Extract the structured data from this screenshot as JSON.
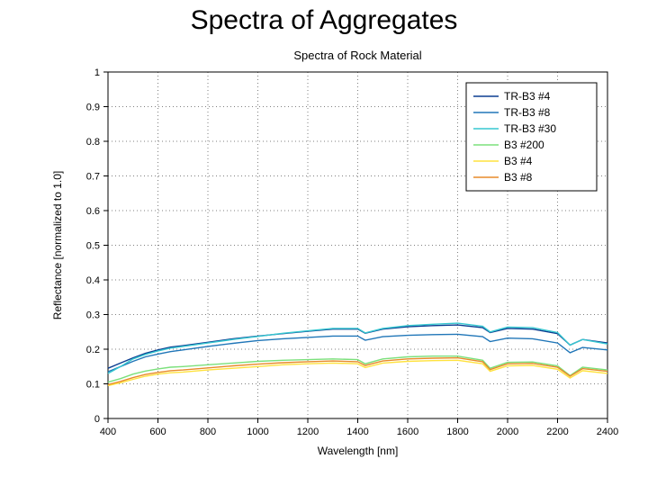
{
  "page_title": "Spectra of Aggregates",
  "chart": {
    "type": "line",
    "title": "Spectra of Rock Material",
    "title_fontsize": 13,
    "xlabel": "Wavelength [nm]",
    "ylabel": "Reflectance [normalized to 1.0]",
    "label_fontsize": 12,
    "tick_fontsize": 11,
    "background_color": "#ffffff",
    "axis_color": "#000000",
    "grid_color": "#000000",
    "grid_style": "dotted",
    "xlim": [
      400,
      2400
    ],
    "ylim": [
      0,
      1
    ],
    "xticks": [
      400,
      600,
      800,
      1000,
      1200,
      1400,
      1600,
      1800,
      2000,
      2200,
      2400
    ],
    "yticks": [
      0,
      0.1,
      0.2,
      0.3,
      0.4,
      0.5,
      0.6,
      0.7,
      0.8,
      0.9,
      1
    ],
    "line_width": 1.4,
    "legend": {
      "position": "upper-right",
      "border_color": "#000000",
      "background_color": "#ffffff",
      "fontsize": 12,
      "sample_line_length": 28
    },
    "series": [
      {
        "name": "TR-B3 #4",
        "color": "#0b3d91",
        "x": [
          400,
          450,
          500,
          550,
          600,
          650,
          700,
          800,
          900,
          1000,
          1100,
          1200,
          1300,
          1400,
          1430,
          1500,
          1600,
          1700,
          1800,
          1900,
          1930,
          2000,
          2100,
          2200,
          2250,
          2300,
          2400
        ],
        "y": [
          0.145,
          0.16,
          0.175,
          0.188,
          0.198,
          0.206,
          0.21,
          0.22,
          0.23,
          0.238,
          0.245,
          0.252,
          0.258,
          0.258,
          0.246,
          0.258,
          0.265,
          0.268,
          0.27,
          0.262,
          0.248,
          0.26,
          0.258,
          0.245,
          0.212,
          0.228,
          0.218
        ]
      },
      {
        "name": "TR-B3 #8",
        "color": "#2076b8",
        "x": [
          400,
          450,
          500,
          550,
          600,
          650,
          700,
          800,
          900,
          1000,
          1100,
          1200,
          1300,
          1400,
          1430,
          1500,
          1600,
          1700,
          1800,
          1900,
          1930,
          2000,
          2100,
          2200,
          2250,
          2300,
          2400
        ],
        "y": [
          0.135,
          0.15,
          0.165,
          0.178,
          0.186,
          0.193,
          0.198,
          0.208,
          0.217,
          0.225,
          0.23,
          0.234,
          0.238,
          0.238,
          0.226,
          0.236,
          0.24,
          0.242,
          0.243,
          0.236,
          0.222,
          0.232,
          0.23,
          0.218,
          0.19,
          0.205,
          0.198
        ]
      },
      {
        "name": "TR-B3 #30",
        "color": "#36c7d0",
        "x": [
          400,
          450,
          500,
          550,
          600,
          650,
          700,
          800,
          900,
          1000,
          1100,
          1200,
          1300,
          1400,
          1430,
          1500,
          1600,
          1700,
          1800,
          1900,
          1930,
          2000,
          2100,
          2200,
          2250,
          2300,
          2400
        ],
        "y": [
          0.13,
          0.15,
          0.172,
          0.185,
          0.195,
          0.203,
          0.208,
          0.218,
          0.228,
          0.237,
          0.246,
          0.253,
          0.26,
          0.26,
          0.247,
          0.26,
          0.268,
          0.272,
          0.275,
          0.266,
          0.25,
          0.264,
          0.262,
          0.248,
          0.212,
          0.228,
          0.215
        ]
      },
      {
        "name": "B3 #200",
        "color": "#7be07b",
        "x": [
          400,
          450,
          500,
          550,
          600,
          650,
          700,
          800,
          900,
          1000,
          1100,
          1200,
          1300,
          1400,
          1430,
          1500,
          1600,
          1700,
          1800,
          1900,
          1930,
          2000,
          2100,
          2200,
          2250,
          2300,
          2400
        ],
        "y": [
          0.105,
          0.115,
          0.128,
          0.137,
          0.143,
          0.148,
          0.15,
          0.155,
          0.16,
          0.165,
          0.168,
          0.17,
          0.172,
          0.17,
          0.158,
          0.172,
          0.178,
          0.18,
          0.18,
          0.168,
          0.145,
          0.162,
          0.163,
          0.152,
          0.124,
          0.148,
          0.14
        ]
      },
      {
        "name": "B3 #4",
        "color": "#ffe23e",
        "x": [
          400,
          450,
          500,
          550,
          600,
          650,
          700,
          800,
          900,
          1000,
          1100,
          1200,
          1300,
          1400,
          1430,
          1500,
          1600,
          1700,
          1800,
          1900,
          1930,
          2000,
          2100,
          2200,
          2250,
          2300,
          2400
        ],
        "y": [
          0.095,
          0.103,
          0.113,
          0.122,
          0.128,
          0.132,
          0.134,
          0.14,
          0.145,
          0.15,
          0.155,
          0.158,
          0.16,
          0.158,
          0.147,
          0.16,
          0.165,
          0.167,
          0.168,
          0.158,
          0.136,
          0.152,
          0.153,
          0.142,
          0.117,
          0.138,
          0.13
        ]
      },
      {
        "name": "B3 #8",
        "color": "#e88b2a",
        "x": [
          400,
          450,
          500,
          550,
          600,
          650,
          700,
          800,
          900,
          1000,
          1100,
          1200,
          1300,
          1400,
          1430,
          1500,
          1600,
          1700,
          1800,
          1900,
          1930,
          2000,
          2100,
          2200,
          2250,
          2300,
          2400
        ],
        "y": [
          0.098,
          0.107,
          0.118,
          0.127,
          0.133,
          0.138,
          0.14,
          0.146,
          0.152,
          0.157,
          0.161,
          0.164,
          0.166,
          0.164,
          0.153,
          0.166,
          0.172,
          0.174,
          0.175,
          0.164,
          0.141,
          0.158,
          0.159,
          0.148,
          0.122,
          0.144,
          0.136
        ]
      }
    ]
  }
}
